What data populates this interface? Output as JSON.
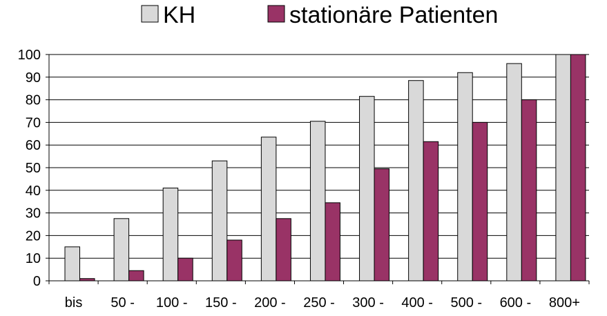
{
  "chart_data": {
    "type": "bar",
    "categories": [
      "bis",
      "50 -",
      "100 -",
      "150 -",
      "200 -",
      "250 -",
      "300 -",
      "400 -",
      "500 -",
      "600 -",
      "800+"
    ],
    "series": [
      {
        "name": "KH",
        "color": "#d9d9d9",
        "values": [
          15,
          27.5,
          41,
          53,
          63.5,
          70.5,
          81.5,
          88.5,
          92,
          96,
          100
        ]
      },
      {
        "name": "stationäre Patienten",
        "color": "#993366",
        "values": [
          1,
          4.5,
          10,
          18,
          27.5,
          34.5,
          49.5,
          61.5,
          70,
          80,
          100
        ]
      }
    ],
    "ylim": [
      0,
      100
    ],
    "yticks": [
      0,
      10,
      20,
      30,
      40,
      50,
      60,
      70,
      80,
      90,
      100
    ],
    "grid": true,
    "legend_position": "top",
    "title": "",
    "xlabel": "",
    "ylabel": ""
  }
}
